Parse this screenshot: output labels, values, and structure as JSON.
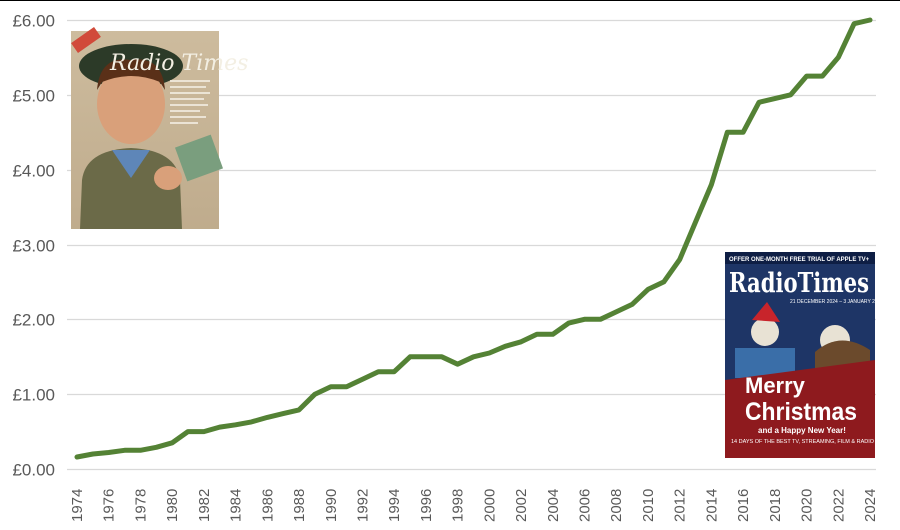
{
  "chart_data": {
    "type": "line",
    "title": "",
    "xlabel": "",
    "ylabel": "",
    "ylim": [
      0,
      6
    ],
    "xlim": [
      1974,
      2024
    ],
    "grid": true,
    "y_ticks": [
      "£0.00",
      "£1.00",
      "£2.00",
      "£3.00",
      "£4.00",
      "£5.00",
      "£6.00"
    ],
    "x_ticks": [
      "1974",
      "1976",
      "1978",
      "1980",
      "1982",
      "1984",
      "1986",
      "1988",
      "1990",
      "1992",
      "1994",
      "1996",
      "1998",
      "2000",
      "2002",
      "2004",
      "2006",
      "2008",
      "2010",
      "2012",
      "2014",
      "2016",
      "2018",
      "2020",
      "2022",
      "2024"
    ],
    "series": [
      {
        "color": "#548235",
        "x": [
          1974,
          1975,
          1976,
          1977,
          1978,
          1979,
          1980,
          1981,
          1982,
          1983,
          1984,
          1985,
          1986,
          1987,
          1988,
          1989,
          1990,
          1991,
          1992,
          1993,
          1994,
          1995,
          1996,
          1997,
          1998,
          1999,
          2000,
          2001,
          2002,
          2003,
          2004,
          2005,
          2006,
          2007,
          2008,
          2009,
          2010,
          2011,
          2012,
          2013,
          2014,
          2015,
          2016,
          2017,
          2018,
          2019,
          2020,
          2021,
          2022,
          2023,
          2024
        ],
        "y": [
          0.16,
          0.2,
          0.22,
          0.25,
          0.25,
          0.29,
          0.35,
          0.5,
          0.5,
          0.56,
          0.59,
          0.63,
          0.69,
          0.74,
          0.79,
          1.0,
          1.1,
          1.1,
          1.2,
          1.3,
          1.3,
          1.5,
          1.5,
          1.5,
          1.4,
          1.5,
          1.55,
          1.64,
          1.7,
          1.8,
          1.8,
          1.95,
          2.0,
          2.0,
          2.1,
          2.2,
          2.4,
          2.5,
          2.8,
          3.3,
          3.8,
          4.5,
          4.5,
          4.9,
          4.95,
          5.0,
          5.25,
          5.25,
          5.5,
          5.95,
          6.0
        ]
      }
    ]
  },
  "images": {
    "cover_1974": {
      "masthead": "Radio Times",
      "icon": "magazine-cover-1970s"
    },
    "cover_2024": {
      "masthead": "RadioTimes",
      "offer": "OFFER ONE-MONTH FREE TRIAL OF APPLE TV+",
      "dates": "21 DECEMBER 2024 – 3 JANUARY 2025",
      "headline_1": "Merry",
      "headline_2": "Christmas",
      "subheadline": "and a Happy New Year!",
      "strapline": "14 DAYS OF THE BEST TV, STREAMING, FILM & RADIO",
      "icon": "magazine-cover-christmas-2024"
    }
  }
}
